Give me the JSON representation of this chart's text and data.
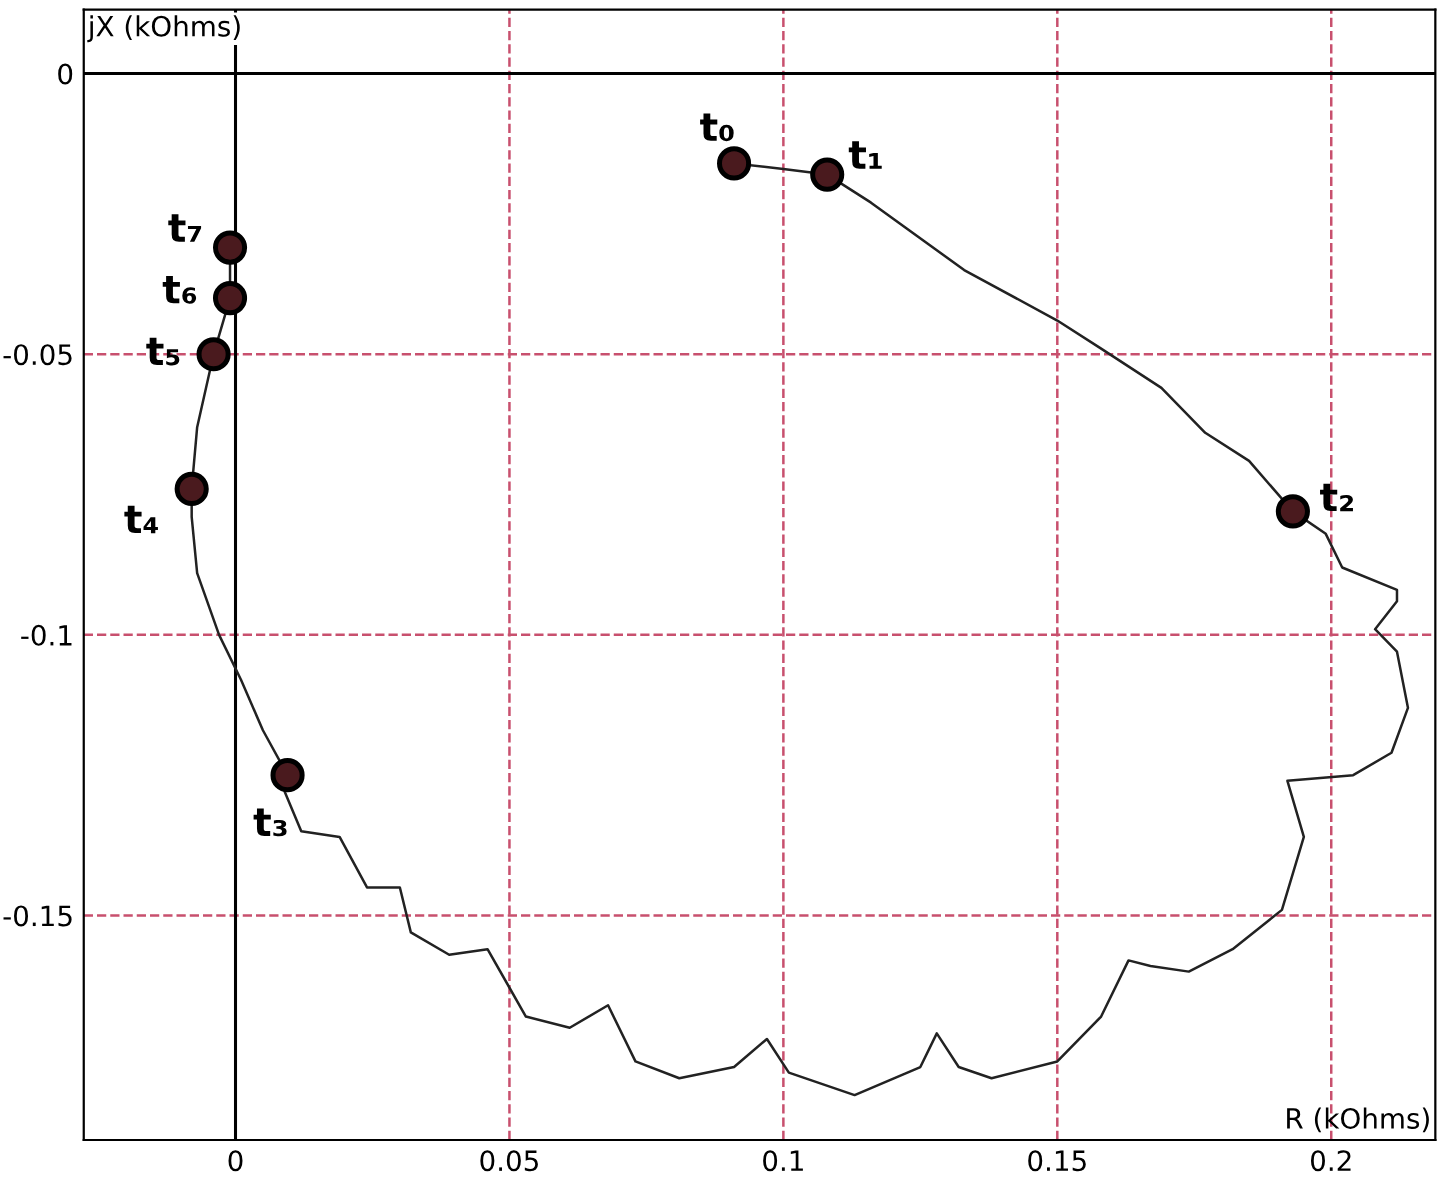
{
  "chart_data": {
    "type": "line",
    "xlabel": "R (kOhms)",
    "ylabel": "jX (kOhms)",
    "xlim": [
      -0.0277,
      0.219
    ],
    "ylim": [
      -0.19,
      0.0114
    ],
    "xticks": [
      0,
      0.05,
      0.1,
      0.15,
      0.2
    ],
    "yticks": [
      0,
      -0.05,
      -0.1,
      -0.15
    ],
    "grid": true,
    "legend": false,
    "series": [
      {
        "color": "#222222",
        "marker": "none",
        "line_style": "solid",
        "x": [
          0.091,
          0.1,
          0.108,
          0.116,
          0.133,
          0.15,
          0.158,
          0.169,
          0.177,
          0.185,
          0.193,
          0.199,
          0.202,
          0.212,
          0.212,
          0.208,
          0.212,
          0.214,
          0.211,
          0.204,
          0.192,
          0.195,
          0.191,
          0.182,
          0.174,
          0.167,
          0.163,
          0.158,
          0.15,
          0.138,
          0.132,
          0.128,
          0.125,
          0.113,
          0.101,
          0.097,
          0.091,
          0.081,
          0.073,
          0.068,
          0.061,
          0.053,
          0.046,
          0.039,
          0.032,
          0.03,
          0.024,
          0.019,
          0.012,
          0.009,
          0.0095,
          0.005,
          0.001,
          -0.003,
          -0.007,
          -0.008,
          -0.008,
          -0.007,
          -0.004,
          -0.001,
          -0.001
        ],
        "values": [
          -0.016,
          -0.017,
          -0.018,
          -0.023,
          -0.035,
          -0.044,
          -0.049,
          -0.056,
          -0.064,
          -0.069,
          -0.078,
          -0.082,
          -0.088,
          -0.092,
          -0.094,
          -0.099,
          -0.103,
          -0.113,
          -0.121,
          -0.125,
          -0.126,
          -0.136,
          -0.149,
          -0.156,
          -0.16,
          -0.159,
          -0.158,
          -0.168,
          -0.176,
          -0.179,
          -0.177,
          -0.171,
          -0.177,
          -0.182,
          -0.178,
          -0.172,
          -0.177,
          -0.179,
          -0.176,
          -0.166,
          -0.17,
          -0.168,
          -0.156,
          -0.157,
          -0.153,
          -0.145,
          -0.145,
          -0.136,
          -0.135,
          -0.128,
          -0.125,
          -0.117,
          -0.108,
          -0.1,
          -0.089,
          -0.079,
          -0.074,
          -0.063,
          -0.05,
          -0.04,
          -0.031
        ]
      },
      {
        "type": "scatter",
        "color": "#4a1a1e",
        "marker": "circle",
        "x": [
          0.091,
          0.108,
          0.193,
          0.0095,
          -0.008,
          -0.004,
          -0.001,
          -0.001
        ],
        "values": [
          -0.016,
          -0.018,
          -0.078,
          -0.125,
          -0.074,
          -0.05,
          -0.04,
          -0.031
        ],
        "value_labels": [
          "t₀",
          "t₁",
          "t₂",
          "t₃",
          "t₄",
          "t₅",
          "t₆",
          "t₇"
        ]
      }
    ]
  }
}
